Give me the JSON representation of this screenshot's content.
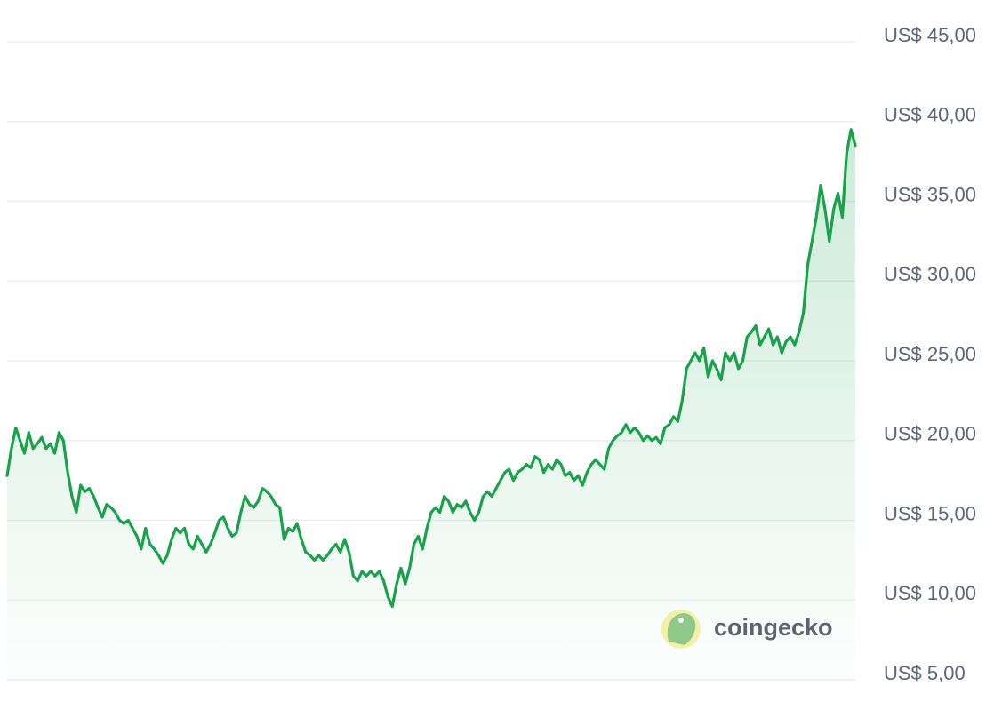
{
  "chart_data": {
    "type": "line",
    "color": "#16a34a",
    "grid": true,
    "watermark": "coingecko",
    "ylim": [
      5,
      45
    ],
    "yticks": [
      {
        "value": 45,
        "label": "US$ 45,00"
      },
      {
        "value": 40,
        "label": "US$ 40,00"
      },
      {
        "value": 35,
        "label": "US$ 35,00"
      },
      {
        "value": 30,
        "label": "US$ 30,00"
      },
      {
        "value": 25,
        "label": "US$ 25,00"
      },
      {
        "value": 20,
        "label": "US$ 20,00"
      },
      {
        "value": 15,
        "label": "US$ 15,00"
      },
      {
        "value": 10,
        "label": "US$ 10,00"
      },
      {
        "value": 5,
        "label": "US$ 5,00"
      }
    ],
    "values": [
      17.8,
      19.5,
      20.8,
      20.0,
      19.2,
      20.5,
      19.5,
      19.8,
      20.2,
      19.5,
      19.8,
      19.2,
      20.5,
      20.0,
      18.0,
      16.5,
      15.5,
      17.2,
      16.8,
      17.0,
      16.5,
      15.8,
      15.2,
      16.0,
      15.8,
      15.5,
      15.0,
      14.8,
      15.0,
      14.5,
      14.0,
      13.2,
      14.5,
      13.5,
      13.2,
      12.8,
      12.3,
      12.8,
      13.8,
      14.5,
      14.2,
      14.5,
      13.5,
      13.2,
      14.0,
      13.5,
      13.0,
      13.5,
      14.2,
      15.0,
      15.2,
      14.5,
      14.0,
      14.2,
      15.5,
      16.5,
      16.0,
      15.8,
      16.2,
      17.0,
      16.8,
      16.5,
      16.0,
      15.8,
      13.8,
      14.5,
      14.3,
      14.8,
      13.8,
      13.0,
      12.8,
      12.5,
      12.8,
      12.5,
      12.8,
      13.2,
      13.5,
      13.0,
      13.8,
      13.0,
      11.5,
      11.2,
      11.8,
      11.5,
      11.8,
      11.5,
      11.8,
      11.2,
      10.2,
      9.6,
      11.0,
      12.0,
      11.0,
      12.0,
      13.5,
      14.0,
      13.2,
      14.5,
      15.5,
      15.8,
      15.5,
      16.5,
      16.2,
      15.5,
      16.0,
      15.8,
      16.2,
      15.5,
      15.0,
      15.5,
      16.5,
      16.8,
      16.5,
      17.0,
      17.5,
      18.0,
      18.2,
      17.5,
      18.0,
      18.2,
      18.5,
      18.3,
      19.0,
      18.8,
      18.0,
      18.5,
      18.2,
      18.8,
      18.5,
      17.8,
      18.0,
      17.5,
      17.8,
      17.2,
      18.0,
      18.5,
      18.8,
      18.5,
      18.2,
      19.5,
      20.0,
      20.3,
      20.5,
      21.0,
      20.5,
      20.8,
      20.5,
      20.0,
      20.3,
      20.0,
      20.2,
      19.8,
      20.8,
      21.0,
      21.5,
      21.2,
      22.5,
      24.5,
      25.0,
      25.5,
      25.0,
      25.8,
      24.0,
      25.0,
      24.5,
      23.8,
      25.5,
      25.0,
      25.5,
      24.5,
      25.0,
      26.5,
      26.8,
      27.2,
      26.0,
      26.5,
      27.0,
      26.0,
      26.5,
      25.5,
      26.2,
      26.5,
      26.0,
      26.8,
      28.0,
      31.0,
      32.5,
      34.0,
      36.0,
      34.5,
      32.5,
      34.5,
      35.5,
      34.0,
      38.0,
      39.5,
      38.5
    ]
  }
}
